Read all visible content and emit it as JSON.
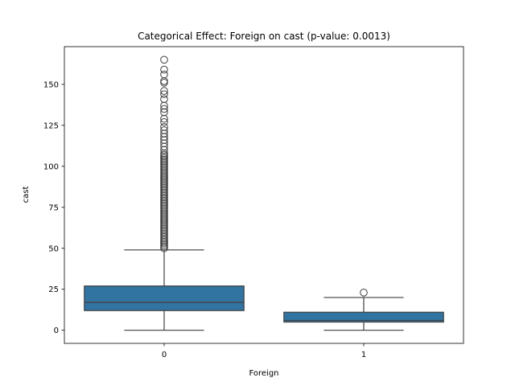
{
  "chart_data": {
    "type": "boxplot",
    "title": "Categorical Effect: Foreign on cast (p-value: 0.0013)",
    "xlabel": "Foreign",
    "ylabel": "cast",
    "categories": [
      "0",
      "1"
    ],
    "ylim": [
      -8,
      173
    ],
    "yticks": [
      0,
      25,
      50,
      75,
      100,
      125,
      150
    ],
    "grid": false,
    "legend": "none",
    "box_color": "#3274a1",
    "edge_color": "#3f3f3f",
    "boxes": [
      {
        "category": "0",
        "whisker_low": 0,
        "q1": 12,
        "median": 17,
        "q3": 27,
        "whisker_high": 49,
        "outliers": [
          50,
          51,
          52,
          53,
          54,
          55,
          56,
          57,
          58,
          59,
          60,
          61,
          62,
          63,
          64,
          65,
          66,
          67,
          68,
          69,
          70,
          71,
          72,
          73,
          74,
          75,
          76,
          77,
          78,
          79,
          80,
          81,
          82,
          83,
          84,
          85,
          86,
          87,
          88,
          89,
          90,
          91,
          92,
          93,
          94,
          95,
          96,
          97,
          98,
          99,
          100,
          101,
          102,
          103,
          104,
          105,
          106,
          107,
          108,
          110,
          112,
          114,
          116,
          118,
          120,
          122,
          124,
          127,
          129,
          133,
          135,
          137,
          141,
          144,
          146,
          151,
          152,
          156,
          159,
          165
        ]
      },
      {
        "category": "1",
        "whisker_low": 0,
        "q1": 5,
        "median": 6,
        "q3": 11,
        "whisker_high": 20,
        "outliers": [
          23
        ]
      }
    ]
  }
}
